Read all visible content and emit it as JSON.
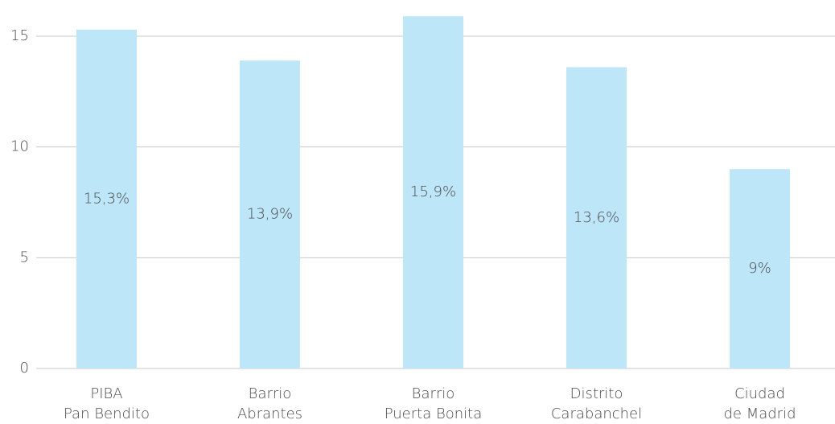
{
  "chart_data": {
    "type": "bar",
    "categories": [
      [
        "PIBA",
        "Pan Bendito"
      ],
      [
        "Barrio",
        "Abrantes"
      ],
      [
        "Barrio",
        "Puerta Bonita"
      ],
      [
        "Distrito",
        "Carabanchel"
      ],
      [
        "Ciudad",
        "de Madrid"
      ]
    ],
    "values": [
      15.3,
      13.9,
      15.9,
      13.6,
      9
    ],
    "value_labels": [
      "15,3%",
      "13,9%",
      "15,9%",
      "13,6%",
      "9%"
    ],
    "color": "#bde6f8",
    "ylim": [
      0,
      16.5
    ],
    "yticks": [
      0,
      5,
      10,
      15
    ],
    "grid": true
  }
}
